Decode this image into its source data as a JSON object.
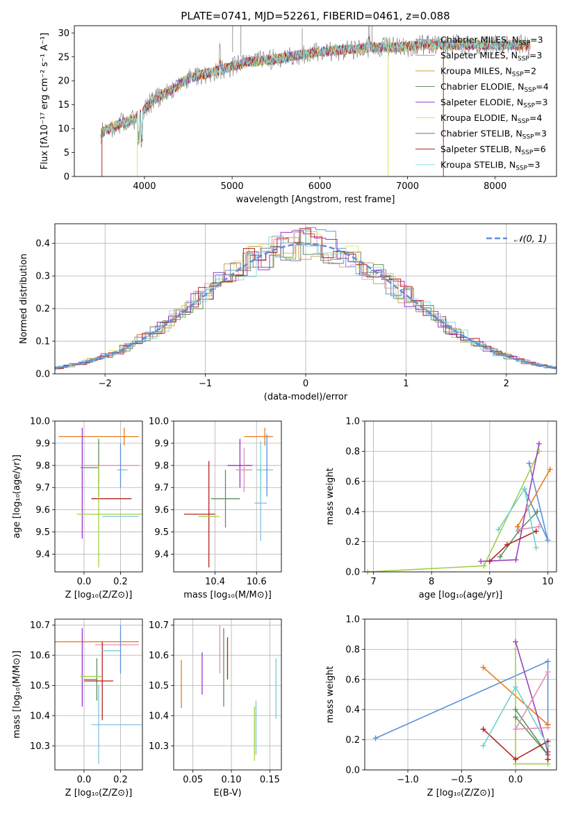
{
  "colors": {
    "series": [
      "#5b9bd5",
      "#e08a8a",
      "#c8a040",
      "#5e8f5e",
      "#9932cc",
      "#dede60",
      "#707070",
      "#b22222",
      "#80e0e0"
    ],
    "panel7": [
      "#5b8fd9",
      "#e87c1e",
      "#a0d040",
      "#609060",
      "#a040c0",
      "#e090b0",
      "#b22222",
      "#70d0d0"
    ],
    "chi": [
      "#5b9bd5",
      "#e8a0b0",
      "#d0a060",
      "#5e8f5e",
      "#9932cc",
      "#e6e680",
      "#808080",
      "#b22222",
      "#90d8e8"
    ],
    "grid": "#b0b0b0",
    "normal_line": "#5b8fd9",
    "err_bars": [
      "#e87c1e",
      "#9932cc",
      "#e090b0",
      "#5e8f5e",
      "#b22222",
      "#a0d040",
      "#80c0e0",
      "#70d0d0",
      "#5b8fd9"
    ],
    "weights_panel": [
      "#5b8fd9",
      "#e87c1e",
      "#a0d040",
      "#609060",
      "#a040c0",
      "#e090b0",
      "#b22222",
      "#70d0d0"
    ]
  },
  "chart_data": [
    {
      "type": "line",
      "title": "PLATE=0741, MJD=52261, FIBERID=0461, z=0.088",
      "xlabel": "wavelength [Angstrom, rest frame]",
      "ylabel": "Flux [fλ10⁻¹⁷ erg cm⁻² s⁻¹ A⁻¹]",
      "xlim": [
        3200,
        8700
      ],
      "ylim": [
        0,
        31.5
      ],
      "xticks": [
        "4000",
        "5000",
        "6000",
        "7000",
        "8000"
      ],
      "yticks": [
        "0",
        "5",
        "10",
        "15",
        "20",
        "25",
        "30"
      ],
      "x_range": [
        3500,
        8400
      ],
      "legend": [
        {
          "label": "Chabrier MILES, N_SSP=3"
        },
        {
          "label": "Salpeter MILES, N_SSP=3"
        },
        {
          "label": "Kroupa MILES, N_SSP=2"
        },
        {
          "label": "Chabrier ELODIE, N_SSP=4"
        },
        {
          "label": "Salpeter ELODIE, N_SSP=3"
        },
        {
          "label": "Kroupa ELODIE, N_SSP=4"
        },
        {
          "label": "Chabrier STELIB, N_SSP=3"
        },
        {
          "label": "Salpeter STELIB, N_SSP=6"
        },
        {
          "label": "Kroupa STELIB, N_SSP=3"
        }
      ],
      "legend_parts": [
        "N",
        "SSP"
      ],
      "continuum_x": [
        3500,
        3700,
        3900,
        4000,
        4100,
        4300,
        4500,
        4800,
        5000,
        5200,
        5500,
        5800,
        6000,
        6300,
        6600,
        6900,
        7200,
        7500,
        7800,
        8100,
        8400
      ],
      "continuum_y": [
        9,
        11,
        12,
        14,
        16,
        18,
        20.5,
        22,
        23,
        24,
        24.5,
        25.5,
        26,
        26.5,
        27,
        27,
        27.5,
        27.5,
        27.5,
        27.5,
        27.5
      ]
    },
    {
      "type": "step",
      "xlabel": "(data-model)/error",
      "ylabel": "Normed distribution",
      "xlim": [
        -2.5,
        2.5
      ],
      "ylim": [
        0,
        0.46
      ],
      "xticks": [
        "−2",
        "−1",
        "0",
        "1",
        "2"
      ],
      "yticks": [
        "0.0",
        "0.1",
        "0.2",
        "0.3",
        "0.4"
      ],
      "bin_width": 0.1,
      "gauss_label": "𝒩(0, 1)"
    },
    {
      "type": "errorbar",
      "xlabel": "Z [log₁₀(Z/Z⊙)]",
      "ylabel": "age  [log₁₀(age/yr)]",
      "xlim": [
        -0.16,
        0.32
      ],
      "ylim": [
        9.32,
        10.0
      ],
      "xticks": [
        "0.0",
        "0.2"
      ],
      "yticks": [
        "9.4",
        "9.5",
        "9.6",
        "9.7",
        "9.8",
        "9.9",
        "10.0"
      ],
      "points": [
        {
          "x": 0.22,
          "y": 9.93,
          "xerr": [
            0.36,
            0.08
          ],
          "yerr": [
            0.04,
            0.04
          ]
        },
        {
          "x": -0.01,
          "y": 9.72,
          "xerr": [
            0.0,
            0.0
          ],
          "yerr": [
            0.25,
            0.25
          ]
        },
        {
          "x": 0.0,
          "y": 9.8,
          "xerr": [
            0.0,
            0.3
          ],
          "yerr": [
            0.0,
            0.0
          ]
        },
        {
          "x": 0.08,
          "y": 9.79,
          "xerr": [
            0.1,
            0.0
          ],
          "yerr": [
            0.13,
            0.13
          ]
        },
        {
          "x": 0.04,
          "y": 9.65,
          "xerr": [
            0.0,
            0.22
          ],
          "yerr": [
            0.0,
            0.0
          ]
        },
        {
          "x": 0.08,
          "y": 9.58,
          "xerr": [
            0.12,
            0.24
          ],
          "yerr": [
            0.24,
            0.22
          ]
        },
        {
          "x": 0.1,
          "y": 9.57,
          "xerr": [
            0.0,
            0.2
          ],
          "yerr": [
            0.0,
            0.0
          ]
        },
        {
          "x": 0.18,
          "y": 9.78,
          "xerr": [
            0.0,
            0.06
          ],
          "yerr": [
            0.0,
            0.0
          ]
        },
        {
          "x": 0.2,
          "y": 9.8,
          "xerr": [
            0.0,
            0.0
          ],
          "yerr": [
            0.1,
            0.1
          ]
        }
      ]
    },
    {
      "type": "errorbar",
      "xlabel": "mass [log₁₀(M/M⊙)]",
      "ylabel": "",
      "xlim": [
        10.2,
        10.72
      ],
      "ylim": [
        9.32,
        10.0
      ],
      "xticks": [
        "10.4",
        "10.6"
      ],
      "yticks": [
        "9.4",
        "9.5",
        "9.6",
        "9.7",
        "9.8",
        "9.9",
        "10.0"
      ],
      "points": [
        {
          "x": 10.64,
          "y": 9.93,
          "xerr": [
            0.1,
            0.04
          ],
          "yerr": [
            0.04,
            0.04
          ]
        },
        {
          "x": 10.52,
          "y": 9.8,
          "xerr": [
            0.06,
            0.06
          ],
          "yerr": [
            0.1,
            0.12
          ]
        },
        {
          "x": 10.54,
          "y": 9.78,
          "xerr": [
            0.04,
            0.04
          ],
          "yerr": [
            0.1,
            0.1
          ]
        },
        {
          "x": 10.45,
          "y": 9.65,
          "xerr": [
            0.07,
            0.07
          ],
          "yerr": [
            0.13,
            0.13
          ]
        },
        {
          "x": 10.37,
          "y": 9.58,
          "xerr": [
            0.12,
            0.03
          ],
          "yerr": [
            0.24,
            0.24
          ]
        },
        {
          "x": 10.37,
          "y": 9.57,
          "xerr": [
            0.05,
            0.05
          ],
          "yerr": [
            0.0,
            0.0
          ]
        },
        {
          "x": 10.62,
          "y": 9.63,
          "xerr": [
            0.03,
            0.03
          ],
          "yerr": [
            0.17,
            0.17
          ]
        },
        {
          "x": 10.62,
          "y": 9.78,
          "xerr": [
            0.02,
            0.06
          ],
          "yerr": [
            0.13,
            0.13
          ]
        },
        {
          "x": 10.65,
          "y": 9.8,
          "xerr": [
            0.0,
            0.0
          ],
          "yerr": [
            0.14,
            0.14
          ]
        }
      ]
    },
    {
      "type": "line",
      "xlabel": "age  [log₁₀(age/yr)]",
      "ylabel": "mass weight",
      "xlim": [
        6.85,
        10.15
      ],
      "ylim": [
        0,
        1.0
      ],
      "xticks": [
        "7",
        "8",
        "9",
        "10"
      ],
      "yticks": [
        "0.0",
        "0.2",
        "0.4",
        "0.6",
        "0.8",
        "1.0"
      ],
      "series": [
        {
          "x": [
            9.68,
            10.0,
            9.6
          ],
          "y": [
            0.72,
            0.21,
            0.55
          ]
        },
        {
          "x": [
            9.48,
            10.04,
            9.48
          ],
          "y": [
            0.3,
            0.68,
            0.3
          ]
        },
        {
          "x": [
            6.9,
            8.9,
            9.85
          ],
          "y": [
            0.0,
            0.04,
            0.8
          ]
        },
        {
          "x": [
            9.18,
            9.5,
            9.82
          ],
          "y": [
            0.1,
            0.27,
            0.4
          ]
        },
        {
          "x": [
            8.85,
            9.45,
            9.85
          ],
          "y": [
            0.07,
            0.08,
            0.85
          ]
        },
        {
          "x": [
            9.5,
            9.85
          ],
          "y": [
            0.28,
            0.3
          ]
        },
        {
          "x": [
            9.0,
            9.3,
            9.8
          ],
          "y": [
            0.07,
            0.18,
            0.27
          ]
        },
        {
          "x": [
            9.15,
            9.6,
            9.8
          ],
          "y": [
            0.28,
            0.55,
            0.16
          ]
        }
      ]
    },
    {
      "type": "errorbar",
      "xlabel": "Z [log₁₀(Z/Z⊙)]",
      "ylabel": "mass [log₁₀(M/M⊙)]",
      "xlim": [
        -0.16,
        0.32
      ],
      "ylim": [
        10.22,
        10.72
      ],
      "xticks": [
        "0.0",
        "0.2"
      ],
      "yticks": [
        "10.3",
        "10.4",
        "10.5",
        "10.6",
        "10.7"
      ],
      "points": [
        {
          "x": 0.1,
          "y": 10.645,
          "xerr": [
            0.26,
            0.2
          ],
          "yerr": [
            0.0,
            0.0
          ]
        },
        {
          "x": -0.01,
          "y": 10.56,
          "xerr": [
            0.0,
            0.0
          ],
          "yerr": [
            0.13,
            0.13
          ]
        },
        {
          "x": 0.1,
          "y": 10.635,
          "xerr": [
            0.04,
            0.2
          ],
          "yerr": [
            0.0,
            0.0
          ]
        },
        {
          "x": 0.07,
          "y": 10.52,
          "xerr": [
            0.07,
            0.0
          ],
          "yerr": [
            0.07,
            0.07
          ]
        },
        {
          "x": 0.1,
          "y": 10.515,
          "xerr": [
            0.1,
            0.06
          ],
          "yerr": [
            0.13,
            0.13
          ]
        },
        {
          "x": 0.04,
          "y": 10.53,
          "xerr": [
            0.06,
            0.06
          ],
          "yerr": [
            0.0,
            0.0
          ]
        },
        {
          "x": 0.08,
          "y": 10.37,
          "xerr": [
            0.04,
            0.24
          ],
          "yerr": [
            0.13,
            0.13
          ]
        },
        {
          "x": 0.15,
          "y": 10.615,
          "xerr": [
            0.05,
            0.05
          ],
          "yerr": [
            0.0,
            0.0
          ]
        },
        {
          "x": 0.2,
          "y": 10.62,
          "xerr": [
            0.0,
            0.0
          ],
          "yerr": [
            0.08,
            0.08
          ]
        }
      ]
    },
    {
      "type": "errorbar",
      "xlabel": "E(B-V)",
      "ylabel": "",
      "xlim": [
        0.025,
        0.165
      ],
      "ylim": [
        10.22,
        10.72
      ],
      "xticks": [
        "0.05",
        "0.10",
        "0.15"
      ],
      "yticks": [
        "10.3",
        "10.4",
        "10.5",
        "10.6",
        "10.7"
      ],
      "points": [
        {
          "x": 0.035,
          "y": 10.505,
          "yerr": [
            0.08,
            0.08
          ]
        },
        {
          "x": 0.062,
          "y": 10.54,
          "yerr": [
            0.07,
            0.07
          ]
        },
        {
          "x": 0.085,
          "y": 10.62,
          "yerr": [
            0.08,
            0.08
          ]
        },
        {
          "x": 0.09,
          "y": 10.56,
          "yerr": [
            0.13,
            0.13
          ]
        },
        {
          "x": 0.095,
          "y": 10.59,
          "yerr": [
            0.07,
            0.07
          ]
        },
        {
          "x": 0.13,
          "y": 10.34,
          "yerr": [
            0.09,
            0.09
          ]
        },
        {
          "x": 0.132,
          "y": 10.36,
          "yerr": [
            0.09,
            0.09
          ]
        },
        {
          "x": 0.158,
          "y": 10.49,
          "yerr": [
            0.1,
            0.1
          ]
        }
      ]
    },
    {
      "type": "line",
      "xlabel": "Z [log₁₀(Z/Z⊙)]",
      "ylabel": "mass weight",
      "xlim": [
        -1.4,
        0.38
      ],
      "ylim": [
        0,
        1.0
      ],
      "xticks": [
        "−1.0",
        "−0.5",
        "0.0"
      ],
      "yticks": [
        "0.0",
        "0.2",
        "0.4",
        "0.6",
        "0.8",
        "1.0"
      ],
      "series": [
        {
          "x": [
            -1.3,
            0.3,
            0.3
          ],
          "y": [
            0.21,
            0.72,
            0.3
          ]
        },
        {
          "x": [
            -0.3,
            0.3,
            0.3
          ],
          "y": [
            0.68,
            0.3,
            0.3
          ]
        },
        {
          "x": [
            0.0,
            0.0,
            0.3
          ],
          "y": [
            0.8,
            0.04,
            0.04
          ]
        },
        {
          "x": [
            0.0,
            0.3,
            0.0
          ],
          "y": [
            0.4,
            0.1,
            0.35
          ]
        },
        {
          "x": [
            0.0,
            0.3,
            0.3
          ],
          "y": [
            0.85,
            0.12,
            0.07
          ]
        },
        {
          "x": [
            0.3,
            0.0,
            0.3
          ],
          "y": [
            0.65,
            0.27,
            0.28
          ]
        },
        {
          "x": [
            -0.3,
            0.0,
            0.3,
            0.3
          ],
          "y": [
            0.27,
            0.07,
            0.19,
            0.07
          ]
        },
        {
          "x": [
            -0.3,
            0.0,
            0.3
          ],
          "y": [
            0.16,
            0.55,
            0.16
          ]
        }
      ]
    }
  ]
}
